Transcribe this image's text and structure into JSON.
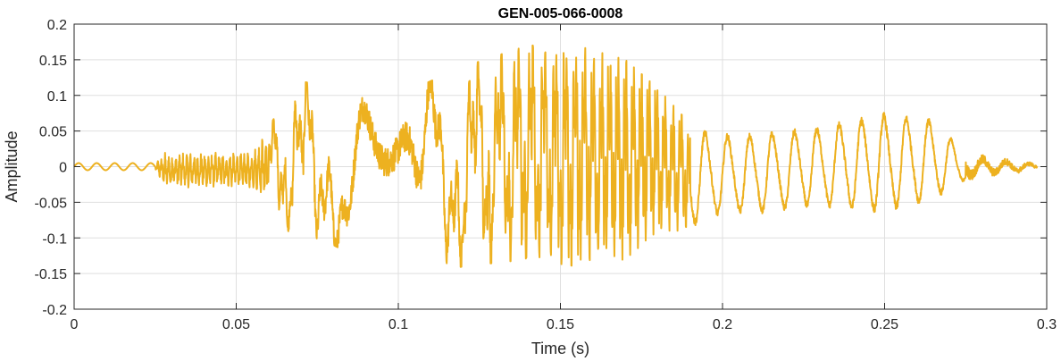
{
  "chart_data": {
    "type": "line",
    "title": "GEN-005-066-0008",
    "xlabel": "Time (s)",
    "ylabel": "Amplitude",
    "xlim": [
      0,
      0.3
    ],
    "ylim": [
      -0.2,
      0.2
    ],
    "grid": true,
    "xticks": [
      0,
      0.05,
      0.1,
      0.15,
      0.2,
      0.25,
      0.3
    ],
    "xtick_labels": [
      "0",
      "0.05",
      "0.1",
      "0.15",
      "0.2",
      "0.25",
      "0.3"
    ],
    "yticks": [
      -0.2,
      -0.15,
      -0.1,
      -0.05,
      0,
      0.05,
      0.1,
      0.15,
      0.2
    ],
    "ytick_labels": [
      "-0.2",
      "-0.15",
      "-0.1",
      "-0.05",
      "0",
      "0.05",
      "0.1",
      "0.15",
      "0.2"
    ],
    "series": [
      {
        "color": "#EDB120",
        "x_end": 0.297,
        "envelope": {
          "t": [
            0,
            0.025,
            0.028,
            0.055,
            0.062,
            0.07,
            0.08,
            0.1,
            0.12,
            0.14,
            0.155,
            0.17,
            0.18,
            0.19,
            0.2,
            0.21,
            0.23,
            0.25,
            0.265,
            0.275,
            0.29,
            0.297
          ],
          "upper": [
            0.005,
            0.005,
            0.02,
            0.02,
            0.07,
            0.12,
            0.11,
            0.1,
            0.14,
            0.17,
            0.17,
            0.15,
            0.11,
            0.06,
            0.05,
            0.05,
            0.06,
            0.08,
            0.07,
            0.02,
            0.01,
            0.005
          ],
          "lower": [
            -0.005,
            -0.005,
            -0.03,
            -0.03,
            -0.06,
            -0.12,
            -0.11,
            -0.16,
            -0.14,
            -0.13,
            -0.14,
            -0.13,
            -0.09,
            -0.09,
            -0.07,
            -0.07,
            -0.06,
            -0.07,
            -0.05,
            -0.02,
            -0.01,
            -0.005
          ]
        }
      }
    ]
  }
}
